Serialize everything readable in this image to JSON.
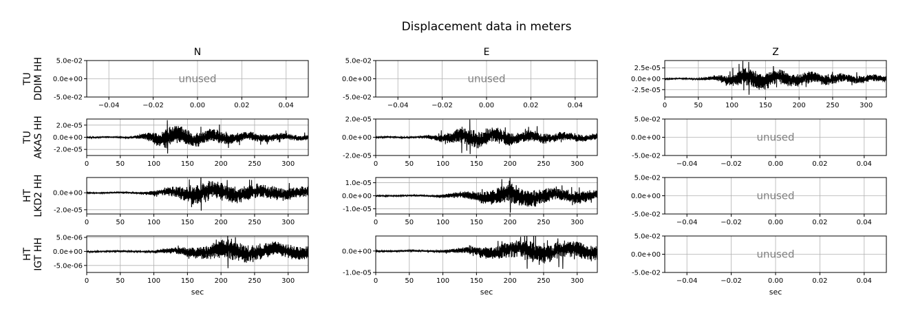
{
  "figure": {
    "title": "Displacement data in meters",
    "columns": [
      "N",
      "E",
      "Z"
    ],
    "rows": [
      {
        "network": "TU",
        "station_channel": "DDIM HH"
      },
      {
        "network": "TU",
        "station_channel": "AKAS HH"
      },
      {
        "network": "HT",
        "station_channel": "LKD2 HH"
      },
      {
        "network": "HT",
        "station_channel": "IGT HH"
      }
    ],
    "xlabel": "sec",
    "unused_label": "unused",
    "colors": {
      "trace": "#000000",
      "grid": "#b0b0b0",
      "unused_text": "#808080"
    }
  },
  "chart_data": [
    {
      "type": "empty",
      "row": 0,
      "col": 0,
      "title": "N",
      "text": "unused",
      "xlim": [
        -0.05,
        0.05
      ],
      "ylim": [
        -0.05,
        0.05
      ],
      "xticks": [
        -0.04,
        -0.02,
        0.0,
        0.02,
        0.04
      ],
      "xtick_labels": [
        "−0.04",
        "−0.02",
        "0.00",
        "0.02",
        "0.04"
      ],
      "yticks": [
        0.05,
        0.0,
        -0.05
      ],
      "ytick_labels": [
        "5.0e-02",
        "0.0e+00",
        "-5.0e-02"
      ],
      "grid": true
    },
    {
      "type": "empty",
      "row": 0,
      "col": 1,
      "title": "E",
      "text": "unused",
      "xlim": [
        -0.05,
        0.05
      ],
      "ylim": [
        -0.05,
        0.05
      ],
      "xticks": [
        -0.04,
        -0.02,
        0.0,
        0.02,
        0.04
      ],
      "xtick_labels": [
        "−0.04",
        "−0.02",
        "0.00",
        "0.02",
        "0.04"
      ],
      "yticks": [
        0.05,
        0.0,
        -0.05
      ],
      "ytick_labels": [
        "5.0e-02",
        "0.0e+00",
        "-5.0e-02"
      ],
      "grid": true
    },
    {
      "type": "line",
      "row": 0,
      "col": 2,
      "title": "Z",
      "xlim": [
        0,
        330
      ],
      "ylim": [
        -4.2e-05,
        4.2e-05
      ],
      "xticks": [
        0,
        50,
        100,
        150,
        200,
        250,
        300
      ],
      "xtick_labels": [
        "0",
        "50",
        "100",
        "150",
        "200",
        "250",
        "300"
      ],
      "yticks": [
        2.5e-05,
        0.0,
        -2.5e-05
      ],
      "ytick_labels": [
        "2.5e-05",
        "0.0e+00",
        "-2.5e-05"
      ],
      "grid": true,
      "onset": 45,
      "peak_time": 125,
      "peak_amp": 4e-05,
      "noise": 1.2e-06,
      "duration": 330,
      "decay": 0.006,
      "wobble": 0.13,
      "seed": 11
    },
    {
      "type": "line",
      "row": 1,
      "col": 0,
      "xlim": [
        0,
        330
      ],
      "ylim": [
        -3e-05,
        3e-05
      ],
      "xticks": [
        0,
        50,
        100,
        150,
        200,
        250,
        300
      ],
      "xtick_labels": [
        "0",
        "50",
        "100",
        "150",
        "200",
        "250",
        "300"
      ],
      "yticks": [
        2e-05,
        0.0,
        -2e-05
      ],
      "ytick_labels": [
        "2.0e-05",
        "0.0e+00",
        "-2.0e-05"
      ],
      "grid": true,
      "onset": 62,
      "peak_time": 120,
      "peak_amp": 2.9e-05,
      "noise": 1e-06,
      "duration": 330,
      "decay": 0.007,
      "wobble": 0.12,
      "seed": 23
    },
    {
      "type": "line",
      "row": 1,
      "col": 1,
      "xlim": [
        0,
        330
      ],
      "ylim": [
        -2e-05,
        2e-05
      ],
      "xticks": [
        0,
        50,
        100,
        150,
        200,
        250,
        300
      ],
      "xtick_labels": [
        "0",
        "50",
        "100",
        "150",
        "200",
        "250",
        "300"
      ],
      "yticks": [
        2e-05,
        0.0,
        -2e-05
      ],
      "ytick_labels": [
        "2.0e-05",
        "0.0e+00",
        "-2.0e-05"
      ],
      "grid": true,
      "onset": 62,
      "peak_time": 140,
      "peak_amp": 2e-05,
      "noise": 7e-07,
      "duration": 330,
      "decay": 0.007,
      "wobble": 0.12,
      "seed": 37
    },
    {
      "type": "empty",
      "row": 1,
      "col": 2,
      "text": "unused",
      "xlim": [
        -0.05,
        0.05
      ],
      "ylim": [
        -0.05,
        0.05
      ],
      "xticks": [
        -0.04,
        -0.02,
        0.0,
        0.02,
        0.04
      ],
      "xtick_labels": [
        "−0.04",
        "−0.02",
        "0.00",
        "0.02",
        "0.04"
      ],
      "yticks": [
        0.05,
        0.0,
        -0.05
      ],
      "ytick_labels": [
        "5.0e-02",
        "0.0e+00",
        "-5.0e-02"
      ],
      "grid": true
    },
    {
      "type": "line",
      "row": 2,
      "col": 0,
      "xlim": [
        0,
        330
      ],
      "ylim": [
        -2.5e-05,
        1.8e-05
      ],
      "xticks": [
        0,
        50,
        100,
        150,
        200,
        250,
        300
      ],
      "xtick_labels": [
        "0",
        "50",
        "100",
        "150",
        "200",
        "250",
        "300"
      ],
      "yticks": [
        0.0,
        -2e-05
      ],
      "ytick_labels": [
        "0.0e+00",
        "-2.0e-05"
      ],
      "grid": true,
      "onset": 72,
      "peak_time": 170,
      "peak_amp": 2.3e-05,
      "noise": 6e-07,
      "duration": 330,
      "decay": 0.005,
      "wobble": 0.09,
      "seed": 41
    },
    {
      "type": "line",
      "row": 2,
      "col": 1,
      "xlim": [
        0,
        330
      ],
      "ylim": [
        -1.4e-05,
        1.4e-05
      ],
      "xticks": [
        0,
        50,
        100,
        150,
        200,
        250,
        300
      ],
      "xtick_labels": [
        "0",
        "50",
        "100",
        "150",
        "200",
        "250",
        "300"
      ],
      "yticks": [
        1e-05,
        0.0,
        -1e-05
      ],
      "ytick_labels": [
        "1.0e-05",
        "0.0e+00",
        "-1.0e-05"
      ],
      "grid": true,
      "onset": 75,
      "peak_time": 200,
      "peak_amp": 1.4e-05,
      "noise": 4e-07,
      "duration": 330,
      "decay": 0.005,
      "wobble": 0.09,
      "seed": 53
    },
    {
      "type": "empty",
      "row": 2,
      "col": 2,
      "text": "unused",
      "xlim": [
        -0.05,
        0.05
      ],
      "ylim": [
        -0.05,
        0.05
      ],
      "xticks": [
        -0.04,
        -0.02,
        0.0,
        0.02,
        0.04
      ],
      "xtick_labels": [
        "−0.04",
        "−0.02",
        "0.00",
        "0.02",
        "0.04"
      ],
      "yticks": [
        0.05,
        0.0,
        -0.05
      ],
      "ytick_labels": [
        "5.0e-02",
        "0.0e+00",
        "-5.0e-02"
      ],
      "grid": true
    },
    {
      "type": "line",
      "row": 3,
      "col": 0,
      "xlim": [
        0,
        330
      ],
      "ylim": [
        -7.5e-06,
        5.5e-06
      ],
      "xticks": [
        0,
        50,
        100,
        150,
        200,
        250,
        300
      ],
      "xtick_labels": [
        "0",
        "50",
        "100",
        "150",
        "200",
        "250",
        "300"
      ],
      "yticks": [
        5e-06,
        0.0,
        -5e-06
      ],
      "ytick_labels": [
        "5.0e-06",
        "0.0e+00",
        "-5.0e-06"
      ],
      "grid": true,
      "onset": 80,
      "peak_time": 210,
      "peak_amp": 6.5e-06,
      "noise": 2e-07,
      "duration": 330,
      "decay": 0.004,
      "wobble": 0.08,
      "seed": 67
    },
    {
      "type": "line",
      "row": 3,
      "col": 1,
      "xlim": [
        0,
        330
      ],
      "ylim": [
        -1e-05,
        7e-06
      ],
      "xticks": [
        0,
        50,
        100,
        150,
        200,
        250,
        300
      ],
      "xtick_labels": [
        "0",
        "50",
        "100",
        "150",
        "200",
        "250",
        "300"
      ],
      "yticks": [
        0.0,
        -1e-05
      ],
      "ytick_labels": [
        "0.0e+00",
        "-1.0e-05"
      ],
      "grid": true,
      "onset": 80,
      "peak_time": 225,
      "peak_amp": 9e-06,
      "noise": 3e-07,
      "duration": 330,
      "decay": 0.004,
      "wobble": 0.08,
      "seed": 79
    },
    {
      "type": "empty",
      "row": 3,
      "col": 2,
      "text": "unused",
      "xlim": [
        -0.05,
        0.05
      ],
      "ylim": [
        -0.05,
        0.05
      ],
      "xticks": [
        -0.04,
        -0.02,
        0.0,
        0.02,
        0.04
      ],
      "xtick_labels": [
        "−0.04",
        "−0.02",
        "0.00",
        "0.02",
        "0.04"
      ],
      "yticks": [
        0.05,
        0.0,
        -0.05
      ],
      "ytick_labels": [
        "5.0e-02",
        "0.0e+00",
        "-5.0e-02"
      ],
      "grid": true
    }
  ]
}
